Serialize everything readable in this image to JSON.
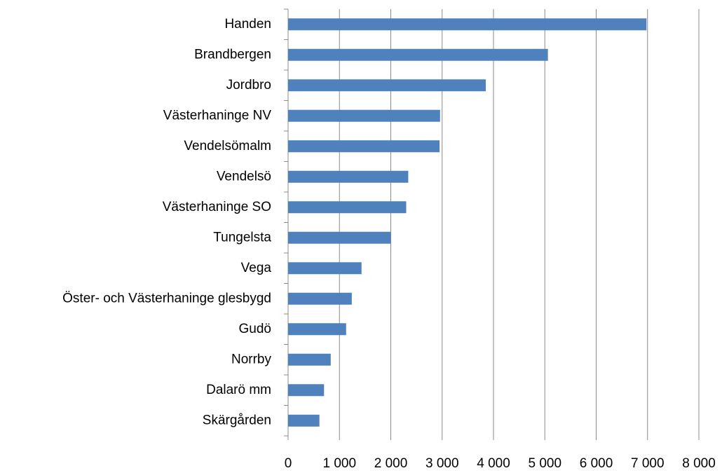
{
  "chart_data": {
    "type": "barh",
    "categories": [
      "Handen",
      "Brandbergen",
      "Jordbro",
      "Västerhaninge NV",
      "Vendelsömalm",
      "Vendelsö",
      "Västerhaninge SO",
      "Tungelsta",
      "Vega",
      "Öster- och Västerhaninge glesbygd",
      "Gudö",
      "Norrby",
      "Dalarö mm",
      "Skärgården"
    ],
    "values": [
      6980,
      5060,
      3850,
      2960,
      2950,
      2340,
      2300,
      2000,
      1430,
      1240,
      1130,
      830,
      700,
      610
    ],
    "color": "#4f81bd",
    "xlim": [
      0,
      8000
    ],
    "xticks": [
      0,
      {
        "value": 1000,
        "label": "1 000"
      },
      {
        "value": 2000,
        "label": "2 000"
      },
      {
        "value": 3000,
        "label": "3 000"
      },
      {
        "value": 4000,
        "label": "4 000"
      },
      {
        "value": 5000,
        "label": "5 000"
      },
      {
        "value": 6000,
        "label": "6 000"
      },
      {
        "value": 7000,
        "label": "7 000"
      },
      {
        "value": 8000,
        "label": "8 000"
      }
    ],
    "grid": true
  }
}
